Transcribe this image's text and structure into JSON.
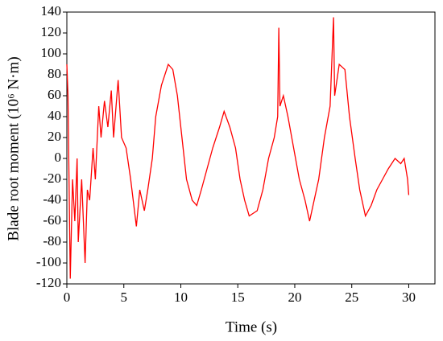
{
  "chart_data": {
    "type": "line",
    "xlabel": "Time  (s)",
    "ylabel": "Blade root moment (10⁶ N·m)",
    "xlim": [
      0,
      32.3
    ],
    "ylim": [
      -120,
      140
    ],
    "xticks": [
      0,
      5,
      10,
      15,
      20,
      25,
      30
    ],
    "yticks": [
      -120,
      -100,
      -80,
      -60,
      -40,
      -20,
      0,
      20,
      40,
      60,
      80,
      100,
      120,
      140
    ],
    "series": [
      {
        "color": "#ff0000",
        "x": [
          0,
          0.1,
          0.3,
          0.5,
          0.7,
          0.9,
          1.0,
          1.3,
          1.6,
          1.8,
          2.0,
          2.3,
          2.5,
          2.8,
          3.0,
          3.3,
          3.6,
          3.9,
          4.1,
          4.5,
          4.8,
          5.2,
          5.6,
          6.1,
          6.4,
          6.8,
          7.1,
          7.5,
          7.8,
          8.3,
          8.9,
          9.3,
          9.7,
          10.1,
          10.5,
          11.0,
          11.4,
          11.8,
          12.3,
          12.8,
          13.4,
          13.8,
          14.3,
          14.8,
          15.2,
          15.6,
          16.0,
          16.7,
          17.2,
          17.7,
          18.2,
          18.5,
          18.6,
          18.7,
          19.0,
          19.4,
          19.9,
          20.4,
          20.9,
          21.3,
          21.7,
          22.1,
          22.6,
          23.1,
          23.4,
          23.5,
          23.9,
          24.4,
          24.8,
          25.3,
          25.7,
          26.2,
          26.7,
          27.2,
          27.7,
          28.2,
          28.8,
          29.3,
          29.6,
          29.9,
          30.0
        ],
        "values": [
          90,
          60,
          -115,
          -20,
          -60,
          0,
          -80,
          -20,
          -100,
          -30,
          -40,
          10,
          -20,
          50,
          20,
          55,
          30,
          65,
          20,
          75,
          20,
          10,
          -20,
          -65,
          -30,
          -50,
          -30,
          0,
          40,
          70,
          90,
          85,
          60,
          20,
          -20,
          -40,
          -45,
          -30,
          -10,
          10,
          30,
          45,
          30,
          10,
          -20,
          -40,
          -55,
          -50,
          -30,
          0,
          20,
          40,
          125,
          50,
          60,
          40,
          10,
          -20,
          -40,
          -60,
          -40,
          -20,
          20,
          50,
          135,
          60,
          90,
          85,
          40,
          0,
          -30,
          -55,
          -45,
          -30,
          -20,
          -10,
          0,
          -5,
          0,
          -20,
          -35
        ]
      }
    ]
  }
}
